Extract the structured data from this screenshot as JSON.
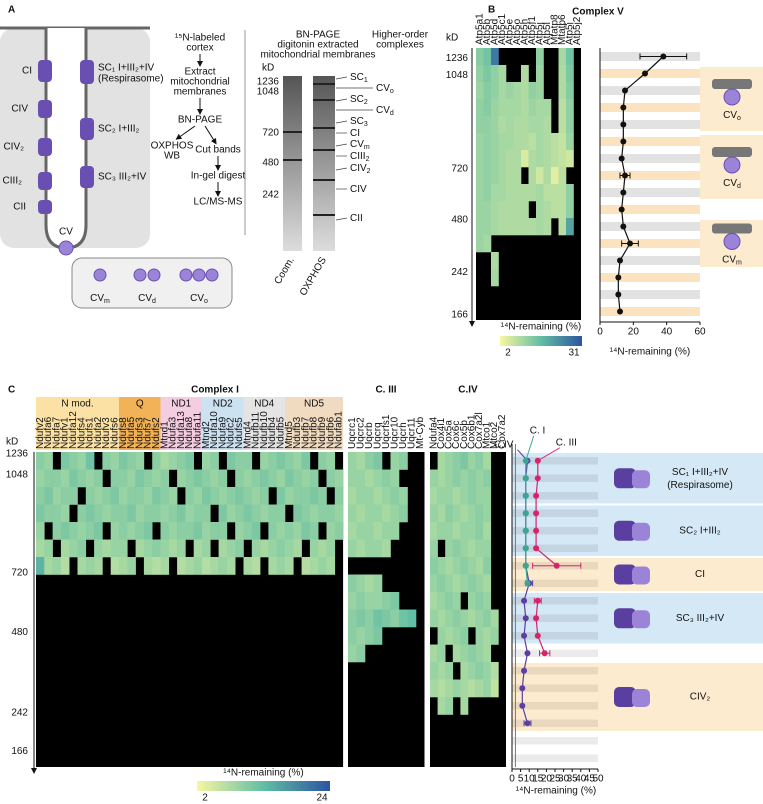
{
  "panel_labels": [
    "A",
    "B",
    "C"
  ],
  "panel_a": {
    "cell_labels": [
      "CI",
      "CIV",
      "CIV₂",
      "CIII₂",
      "CII"
    ],
    "sc_labels": [
      "SC₁ I+III₂+IV",
      "(Respirasome)",
      "SC₂ I+III₂",
      "SC₃ III₂+IV"
    ],
    "cv": "CV",
    "cv_forms": [
      {
        "main": "CV",
        "sub": "m"
      },
      {
        "main": "CV",
        "sub": "d"
      },
      {
        "main": "CV",
        "sub": "o"
      }
    ],
    "workflow": [
      "¹⁵N-labeled",
      "cortex",
      "Extract",
      "mitochondrial",
      "membranes",
      "BN-PAGE",
      "OXPHOS",
      "WB",
      "Cut bands",
      "In-gel digest",
      "LC/MS-MS"
    ],
    "gel": {
      "title": [
        "BN-PAGE",
        "digitonin extracted",
        "mitochondrial membranes"
      ],
      "higher": [
        "Higher-order",
        "complexes"
      ],
      "kd_label": "kD",
      "kd": [
        1236,
        1048,
        720,
        480,
        242
      ],
      "lanes": [
        "Coom.",
        "OXPHOS"
      ],
      "bands": [
        {
          "main": "SC",
          "sub": "1"
        },
        {
          "main": "CV",
          "sub": "o"
        },
        {
          "main": "SC",
          "sub": "2"
        },
        {
          "main": "CV",
          "sub": "d"
        },
        {
          "main": "SC",
          "sub": "3"
        },
        {
          "main": "CI"
        },
        {
          "main": "CV",
          "sub": "m"
        },
        {
          "main": "CIII",
          "sub": "2"
        },
        {
          "main": "CIV",
          "sub": "2"
        },
        {
          "main": "CIV"
        },
        {
          "main": "CII"
        }
      ]
    }
  },
  "complex_v_annotations": [
    {
      "main": "CV",
      "sub": "o"
    },
    {
      "main": "CV",
      "sub": "d"
    },
    {
      "main": "CV",
      "sub": "m"
    }
  ],
  "complex_c_annotations": [
    {
      "label": "SC₁ I+III₂+IV",
      "note": "(Respirasome)"
    },
    {
      "label": "SC₂ I+III₂"
    },
    {
      "label": "CI"
    },
    {
      "label": "SC₃ III₂+IV"
    },
    {
      "label": "CIV₂"
    }
  ],
  "chart_data": [
    {
      "type": "heatmap",
      "title": "Complex V",
      "kd_label": "kD",
      "kd_ticks": [
        1236,
        1048,
        720,
        480,
        242,
        166
      ],
      "colorbar_label": "¹⁴N-remaining (%)",
      "color_range": [
        2,
        31
      ],
      "genes": [
        "Atp5a1",
        "Atp5b",
        "Atp5d",
        "Atp5c1",
        "Atp5e",
        "Atp5o",
        "Atp5h",
        "Atp5f1",
        "Atp5j",
        "Atp5l",
        "Mtatp8",
        "Mtatp6",
        "Atp5i",
        "Atp5j2"
      ],
      "rows": [
        [
          13,
          15,
          26,
          null,
          null,
          null,
          null,
          null,
          12,
          null,
          null,
          10,
          15,
          null
        ],
        [
          12,
          14,
          12,
          10,
          null,
          null,
          9,
          null,
          11,
          null,
          null,
          9,
          14,
          null
        ],
        [
          11,
          13,
          12,
          10,
          11,
          10,
          9,
          12,
          11,
          null,
          null,
          9,
          13,
          null
        ],
        [
          12,
          13,
          11,
          10,
          10,
          10,
          9,
          11,
          10,
          10,
          null,
          8,
          12,
          null
        ],
        [
          12,
          12,
          11,
          9,
          10,
          9,
          9,
          10,
          10,
          9,
          null,
          8,
          12,
          null
        ],
        [
          11,
          12,
          11,
          10,
          10,
          9,
          9,
          8,
          10,
          9,
          8,
          7,
          11,
          null
        ],
        [
          11,
          12,
          11,
          10,
          9,
          9,
          5,
          9,
          10,
          9,
          8,
          7,
          6,
          null
        ],
        [
          11,
          12,
          11,
          10,
          9,
          9,
          null,
          9,
          6,
          9,
          4,
          8,
          null,
          null
        ],
        [
          11,
          12,
          10,
          10,
          9,
          9,
          9,
          9,
          10,
          8,
          8,
          8,
          12,
          null
        ],
        [
          11,
          11,
          10,
          9,
          9,
          9,
          9,
          null,
          10,
          9,
          8,
          8,
          12,
          null
        ],
        [
          11,
          11,
          10,
          9,
          9,
          9,
          9,
          9,
          10,
          9,
          null,
          8,
          20,
          null
        ],
        [
          11,
          10,
          null,
          null,
          null,
          null,
          null,
          null,
          null,
          null,
          null,
          null,
          null,
          null
        ],
        [
          null,
          null,
          9,
          null,
          null,
          null,
          null,
          null,
          null,
          null,
          null,
          null,
          null,
          null
        ],
        [
          null,
          null,
          10,
          null,
          null,
          null,
          null,
          null,
          null,
          null,
          null,
          null,
          null,
          null
        ]
      ]
    },
    {
      "type": "line",
      "xlabel": "¹⁴N-remaining (%)",
      "xlim": [
        0,
        60
      ],
      "xticks": [
        0,
        20,
        40,
        60
      ],
      "color": "#111111",
      "values": [
        38,
        27,
        15,
        14,
        14,
        14,
        13,
        15,
        14,
        13,
        14,
        18,
        12,
        11,
        11,
        12
      ],
      "errors": [
        14,
        null,
        null,
        null,
        null,
        null,
        null,
        3,
        null,
        null,
        null,
        5,
        null,
        null,
        null,
        null
      ]
    },
    {
      "type": "heatmap",
      "title": "Complex I",
      "kd_label": "kD",
      "kd_ticks": [
        1236,
        1048,
        720,
        480,
        242,
        166
      ],
      "colorbar_label": "¹⁴N-remaining (%)",
      "color_range": [
        2,
        24
      ],
      "groups": [
        {
          "name": "N mod.",
          "color": "#fbe2a4",
          "genes": [
            "Ndufv2",
            "Ndufa6",
            "Ndufa7",
            "Ndufv1",
            "Ndufa12",
            "Ndufs4",
            "Ndufs1",
            "Ndufa2",
            "Ndufv3",
            "Ndufs6"
          ]
        },
        {
          "name": "Q",
          "color": "#f2b257",
          "genes": [
            "Ndufs8",
            "Ndufa5",
            "Ndufs3",
            "Ndufs7",
            "Ndufs2"
          ]
        },
        {
          "name": "ND1",
          "color": "#f4cde0",
          "genes": [
            "Mtnd1",
            "Ndufa3",
            "Ndufa13",
            "Ndufa8",
            "Ndufa11"
          ]
        },
        {
          "name": "ND2",
          "color": "#cde2f1",
          "genes": [
            "Mtnd2",
            "Ndufa10",
            "Ndufa9",
            "Ndufc2",
            "Ndufs5"
          ]
        },
        {
          "name": "ND4",
          "color": "#e4e4e4",
          "genes": [
            "Mtnd4",
            "Ndufb11",
            "Ndufb10",
            "Ndufb4",
            "Ndufb5"
          ]
        },
        {
          "name": "ND5",
          "color": "#f0dbc0",
          "genes": [
            "Mtnd5",
            "Ndufb3",
            "Ndufb7",
            "Ndufb8",
            "Ndufb9",
            "Ndufb6",
            "Ndufab1"
          ]
        }
      ],
      "rows": [
        [
          10,
          9,
          null,
          11,
          10,
          9,
          12,
          null,
          10,
          9,
          11,
          10,
          9,
          null,
          10,
          8,
          9,
          10,
          11,
          null,
          9,
          10,
          null,
          11,
          10,
          10,
          null,
          9,
          10,
          11,
          10,
          9,
          11,
          null,
          10,
          9,
          null
        ],
        [
          9,
          10,
          10,
          9,
          11,
          10,
          9,
          10,
          null,
          10,
          10,
          9,
          11,
          10,
          9,
          10,
          null,
          9,
          10,
          11,
          10,
          9,
          10,
          null,
          10,
          9,
          10,
          11,
          10,
          9,
          11,
          10,
          9,
          10,
          null,
          10,
          9
        ],
        [
          10,
          11,
          9,
          10,
          10,
          null,
          10,
          9,
          10,
          11,
          9,
          10,
          10,
          9,
          11,
          10,
          9,
          null,
          10,
          9,
          11,
          10,
          9,
          10,
          11,
          10,
          9,
          10,
          null,
          11,
          9,
          10,
          10,
          11,
          10,
          null,
          10
        ],
        [
          11,
          10,
          10,
          9,
          null,
          10,
          11,
          10,
          9,
          10,
          10,
          11,
          9,
          10,
          10,
          9,
          10,
          11,
          9,
          10,
          10,
          null,
          11,
          9,
          10,
          11,
          10,
          9,
          10,
          10,
          null,
          11,
          10,
          9,
          10,
          10,
          9
        ],
        [
          9,
          null,
          10,
          11,
          10,
          9,
          10,
          11,
          null,
          9,
          10,
          9,
          10,
          11,
          null,
          10,
          9,
          10,
          10,
          11,
          9,
          10,
          10,
          null,
          9,
          10,
          11,
          null,
          10,
          9,
          10,
          9,
          11,
          10,
          null,
          9,
          10
        ],
        [
          8,
          9,
          null,
          8,
          9,
          10,
          null,
          9,
          8,
          9,
          9,
          null,
          8,
          9,
          10,
          9,
          8,
          9,
          null,
          8,
          9,
          null,
          8,
          9,
          10,
          null,
          9,
          8,
          9,
          10,
          9,
          8,
          null,
          9,
          8,
          9,
          null
        ],
        [
          14,
          8,
          9,
          7,
          null,
          8,
          9,
          8,
          null,
          7,
          8,
          9,
          null,
          8,
          7,
          8,
          null,
          7,
          8,
          9,
          7,
          8,
          9,
          8,
          null,
          8,
          7,
          null,
          8,
          9,
          8,
          null,
          7,
          8,
          9,
          8,
          null
        ]
      ]
    },
    {
      "type": "heatmap",
      "title": "C. III",
      "genes": [
        "Uqcrc1",
        "Uqcrc2",
        "Uqcrb",
        "Uqcrq",
        "Uqcrfs1",
        "Uqcr10",
        "Uqcrh",
        "Uqcr11",
        "Mt-Cyb"
      ],
      "rows": [
        [
          9,
          8,
          10,
          11,
          null,
          9,
          10,
          null,
          null
        ],
        [
          9,
          9,
          8,
          9,
          10,
          9,
          null,
          null,
          null
        ],
        [
          8,
          9,
          9,
          8,
          9,
          10,
          9,
          null,
          null
        ],
        [
          9,
          8,
          9,
          9,
          8,
          9,
          10,
          null,
          null
        ],
        [
          8,
          9,
          9,
          8,
          9,
          9,
          null,
          null,
          null
        ],
        [
          9,
          8,
          9,
          9,
          8,
          null,
          null,
          null,
          null
        ],
        [
          null,
          null,
          null,
          null,
          null,
          null,
          null,
          null,
          null
        ],
        [
          10,
          9,
          8,
          9,
          null,
          null,
          null,
          null,
          null
        ],
        [
          9,
          10,
          9,
          9,
          10,
          11,
          null,
          null,
          null
        ],
        [
          10,
          11,
          10,
          12,
          11,
          10,
          12,
          13,
          null
        ],
        [
          10,
          9,
          10,
          11,
          null,
          null,
          null,
          null,
          null
        ],
        [
          9,
          10,
          null,
          null,
          null,
          null,
          null,
          null,
          null
        ]
      ]
    },
    {
      "type": "heatmap",
      "title": "C.IV",
      "genes": [
        "Ndufa4",
        "Cox4i1",
        "Cox5a",
        "Cox6c",
        "Cox5b",
        "Cox6b1",
        "Cox7a2l",
        "Mtco1",
        "Mtco2",
        "Cox7a2"
      ],
      "rows": [
        [
          null,
          8,
          9,
          10,
          11,
          9,
          10,
          8,
          null,
          null
        ],
        [
          9,
          8,
          9,
          10,
          9,
          10,
          9,
          10,
          null,
          null
        ],
        [
          8,
          9,
          9,
          8,
          9,
          10,
          9,
          9,
          null,
          null
        ],
        [
          9,
          8,
          10,
          9,
          8,
          9,
          10,
          9,
          null,
          null
        ],
        [
          8,
          9,
          9,
          8,
          9,
          9,
          10,
          8,
          null,
          null
        ],
        [
          9,
          null,
          9,
          10,
          9,
          8,
          9,
          9,
          null,
          null
        ],
        [
          10,
          9,
          8,
          9,
          10,
          9,
          8,
          10,
          null,
          null
        ],
        [
          9,
          10,
          9,
          8,
          9,
          10,
          9,
          8,
          null,
          null
        ],
        [
          8,
          9,
          10,
          9,
          null,
          9,
          10,
          9,
          null,
          null
        ],
        [
          9,
          8,
          9,
          10,
          9,
          8,
          9,
          10,
          8,
          null
        ],
        [
          null,
          9,
          8,
          9,
          10,
          null,
          9,
          8,
          9,
          null
        ],
        [
          8,
          9,
          null,
          8,
          9,
          10,
          9,
          8,
          null,
          null
        ],
        [
          9,
          8,
          9,
          null,
          8,
          9,
          10,
          9,
          7,
          null
        ],
        [
          8,
          7,
          8,
          9,
          8,
          7,
          8,
          9,
          6,
          null
        ],
        [
          null,
          8,
          9,
          null,
          8,
          null,
          null,
          null,
          null,
          null
        ]
      ]
    },
    {
      "type": "line",
      "xlabel": "¹⁴N-remaining (%)",
      "xlim": [
        0,
        50
      ],
      "xticks": [
        0,
        5,
        10,
        15,
        20,
        25,
        30,
        35,
        40,
        45,
        50
      ],
      "series": [
        {
          "name": "C.IV",
          "color": "#5b3fa0",
          "values": [
            9,
            8,
            8,
            8,
            8,
            8,
            8,
            10,
            7,
            8,
            7,
            9,
            7,
            6,
            6,
            9,
            null,
            null
          ],
          "errors": [
            null,
            null,
            null,
            null,
            null,
            null,
            null,
            2,
            null,
            null,
            null,
            null,
            null,
            null,
            null,
            2,
            null,
            null
          ]
        },
        {
          "name": "C. I",
          "color": "#3aa796",
          "values": [
            8,
            8,
            8,
            8,
            8,
            8,
            8,
            9,
            null,
            null,
            null,
            null,
            null,
            null,
            null,
            null,
            null,
            null
          ]
        },
        {
          "name": "C. III",
          "color": "#d4246c",
          "values": [
            15,
            15,
            14,
            14,
            14,
            14,
            26,
            null,
            15,
            14,
            15,
            19,
            null,
            null,
            null,
            null,
            null,
            null
          ],
          "errors": [
            null,
            null,
            null,
            null,
            null,
            null,
            14,
            null,
            2,
            null,
            null,
            3,
            null,
            null,
            null,
            null,
            null,
            null
          ]
        }
      ]
    }
  ]
}
